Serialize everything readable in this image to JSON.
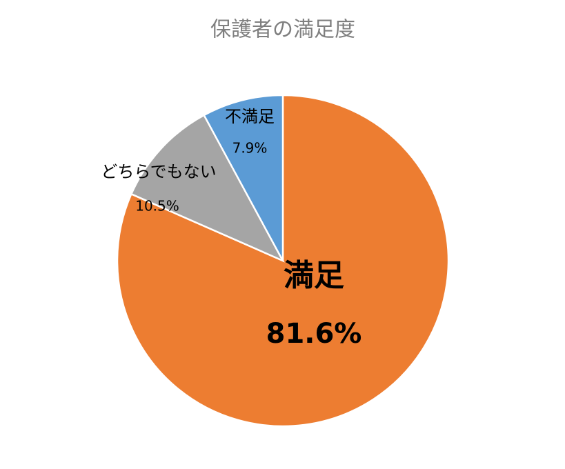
{
  "chart_data": {
    "type": "pie",
    "title": "保護者の満足度",
    "categories": [
      "満足",
      "どちらでもない",
      "不満足"
    ],
    "values": [
      81.6,
      10.5,
      7.9
    ],
    "value_labels": [
      "81.6%",
      "10.5%",
      "7.9%"
    ],
    "colors": [
      "#ED7D31",
      "#A5A5A5",
      "#5B9BD5"
    ]
  }
}
